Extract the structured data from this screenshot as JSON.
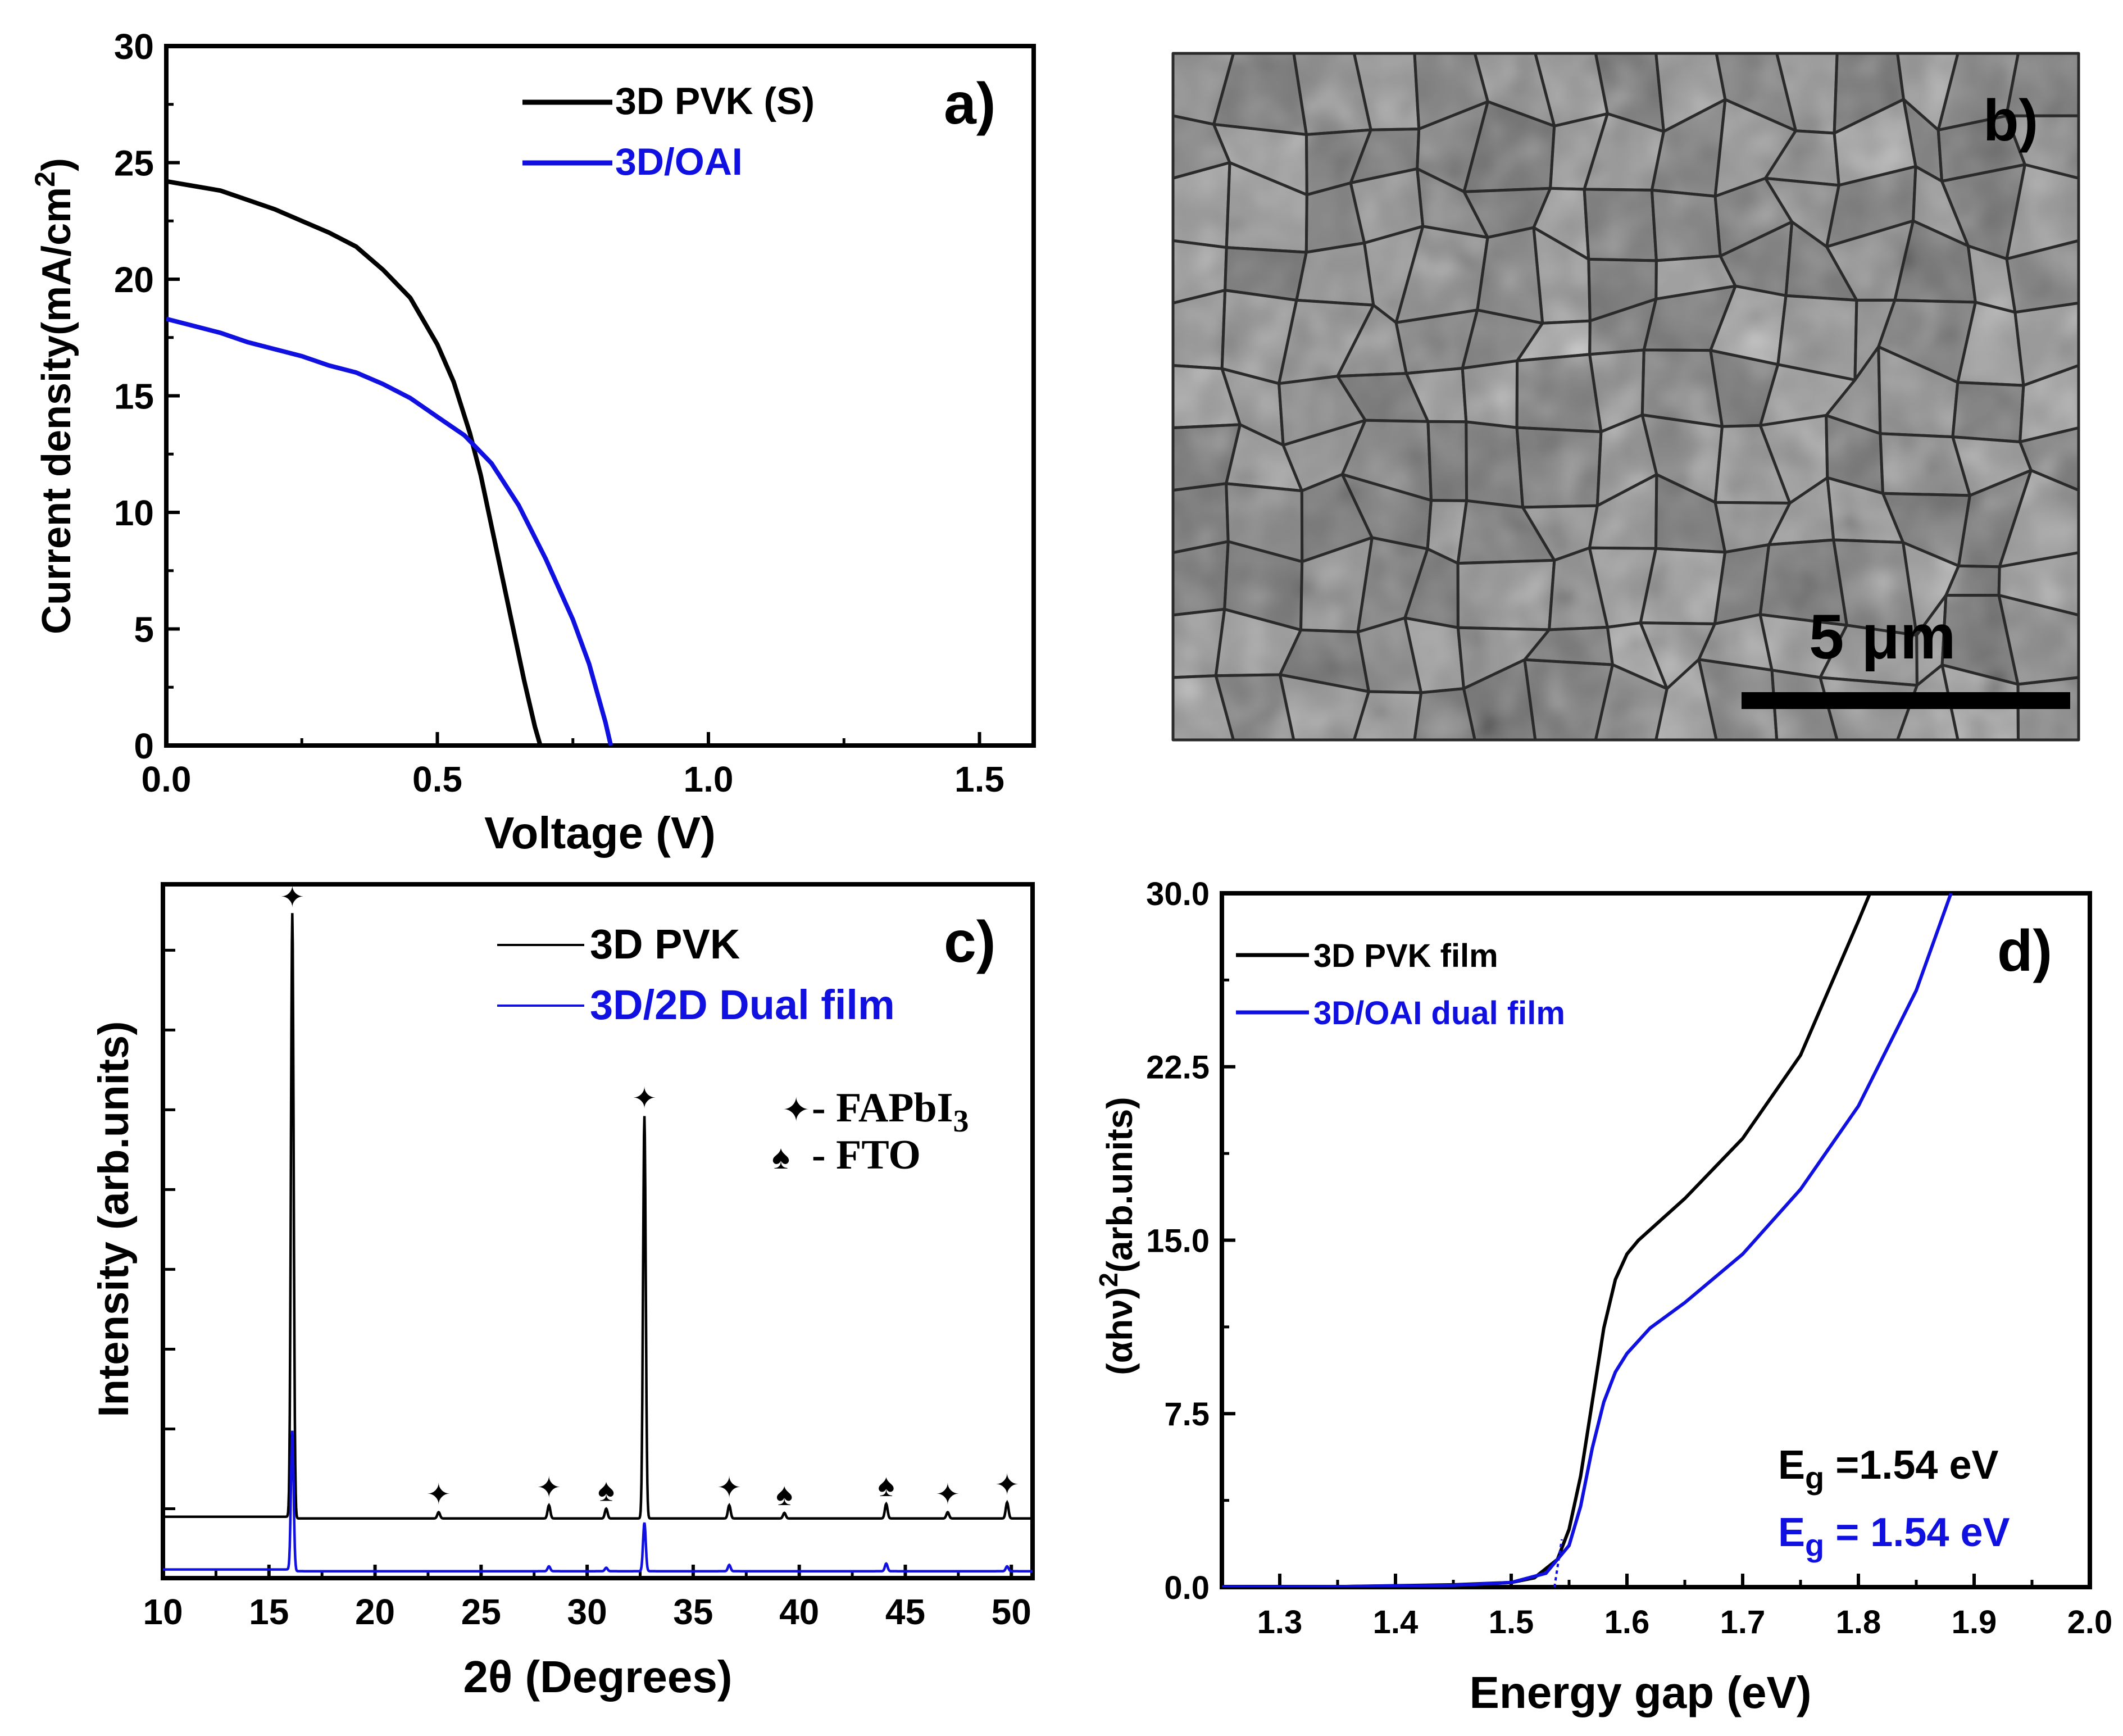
{
  "figure": {
    "panel_a": {
      "panel_label": "a)",
      "chart_data": {
        "type": "line",
        "xlabel": "Voltage (V)",
        "ylabel": "Current density(mA/cm",
        "ylabel_sup": "2",
        "ylabel_end": ")",
        "xlim": [
          0,
          1.6
        ],
        "ylim": [
          0,
          30
        ],
        "xticks": [
          0.0,
          0.5,
          1.0,
          1.5
        ],
        "xtick_labels": [
          "0.0",
          "0.5",
          "1.0",
          "1.5"
        ],
        "yticks": [
          0,
          5,
          10,
          15,
          20,
          25,
          30
        ],
        "ytick_labels": [
          "0",
          "5",
          "10",
          "15",
          "20",
          "25",
          "30"
        ],
        "series": [
          {
            "name": "3D PVK (S)",
            "color": "#000000",
            "x": [
              0,
              0.05,
              0.1,
              0.15,
              0.2,
              0.25,
              0.3,
              0.35,
              0.4,
              0.45,
              0.5,
              0.53,
              0.56,
              0.58,
              0.6,
              0.62,
              0.64,
              0.66,
              0.68,
              0.69
            ],
            "y": [
              24.2,
              24.0,
              23.8,
              23.4,
              23.0,
              22.5,
              22.0,
              21.4,
              20.4,
              19.2,
              17.2,
              15.6,
              13.4,
              11.6,
              9.4,
              7.2,
              5.0,
              2.8,
              0.8,
              0
            ]
          },
          {
            "name": "3D/OAI",
            "color": "#1010e0",
            "x": [
              0,
              0.05,
              0.1,
              0.15,
              0.2,
              0.25,
              0.3,
              0.35,
              0.4,
              0.45,
              0.5,
              0.55,
              0.6,
              0.65,
              0.7,
              0.75,
              0.78,
              0.81,
              0.82
            ],
            "y": [
              18.3,
              18.0,
              17.7,
              17.3,
              17.0,
              16.7,
              16.3,
              16.0,
              15.5,
              14.9,
              14.1,
              13.3,
              12.1,
              10.3,
              8.0,
              5.4,
              3.5,
              1.0,
              0
            ]
          }
        ]
      }
    },
    "panel_b": {
      "panel_label": "b)",
      "scale_bar_label": "5 μm"
    },
    "panel_c": {
      "panel_label": "c)",
      "chart_data": {
        "type": "line",
        "xlabel": "2θ (Degrees)",
        "ylabel": "Intensity (arb.units)",
        "xlim": [
          10,
          51
        ],
        "ylim": [
          0,
          100
        ],
        "xticks": [
          10,
          15,
          20,
          25,
          30,
          35,
          40,
          45,
          50
        ],
        "xtick_labels": [
          "10",
          "15",
          "20",
          "25",
          "30",
          "35",
          "40",
          "45",
          "50"
        ],
        "series": [
          {
            "name": "3D PVK",
            "color": "#000000",
            "baseline": 8.6,
            "peaks": [
              {
                "x": 16.1,
                "height": 87
              },
              {
                "x": 23.0,
                "height": 0.9
              },
              {
                "x": 28.2,
                "height": 1.9
              },
              {
                "x": 30.9,
                "height": 1.4
              },
              {
                "x": 32.7,
                "height": 58
              },
              {
                "x": 36.7,
                "height": 1.9
              },
              {
                "x": 39.3,
                "height": 0.8
              },
              {
                "x": 44.1,
                "height": 2.1
              },
              {
                "x": 47.0,
                "height": 0.9
              },
              {
                "x": 49.8,
                "height": 2.3
              }
            ]
          },
          {
            "name": "3D/2D Dual film",
            "color": "#1010e0",
            "baseline": 1.0,
            "peaks": [
              {
                "x": 16.1,
                "height": 20
              },
              {
                "x": 28.2,
                "height": 0.7
              },
              {
                "x": 30.9,
                "height": 0.5
              },
              {
                "x": 32.7,
                "height": 7
              },
              {
                "x": 36.7,
                "height": 0.9
              },
              {
                "x": 44.1,
                "height": 1.1
              },
              {
                "x": 49.8,
                "height": 0.7
              }
            ]
          }
        ],
        "markers": [
          {
            "symbol": "✦",
            "label": "FAPbI3",
            "x": [
              16.1,
              23.0,
              28.2,
              32.7,
              36.7,
              47.0,
              49.8
            ]
          },
          {
            "symbol": "♠",
            "label": "FTO",
            "x": [
              30.9,
              39.3,
              44.1
            ]
          }
        ],
        "annotations": {
          "fapbi3_prefix": "- FAPbI",
          "fapbi3_sub": "3",
          "fto": "- FTO"
        }
      }
    },
    "panel_d": {
      "panel_label": "d)",
      "chart_data": {
        "type": "line",
        "xlabel": "Energy gap (eV)",
        "ylabel": "(αhν)",
        "ylabel_sup": "2",
        "ylabel_end": "(arb.units)",
        "xlim": [
          1.25,
          2.0
        ],
        "ylim": [
          0,
          30
        ],
        "xticks": [
          1.3,
          1.4,
          1.5,
          1.6,
          1.7,
          1.8,
          1.9,
          2.0
        ],
        "xtick_labels": [
          "1.3",
          "1.4",
          "1.5",
          "1.6",
          "1.7",
          "1.8",
          "1.9",
          "2.0"
        ],
        "yticks": [
          0.0,
          7.5,
          15.0,
          22.5,
          30.0
        ],
        "ytick_labels": [
          "0.0",
          "7.5",
          "15.0",
          "22.5",
          "30.0"
        ],
        "series": [
          {
            "name": "3D PVK film",
            "color": "#000000",
            "x": [
              1.25,
              1.35,
              1.45,
              1.5,
              1.52,
              1.54,
              1.55,
              1.56,
              1.57,
              1.58,
              1.59,
              1.6,
              1.61,
              1.63,
              1.65,
              1.7,
              1.75,
              1.8,
              1.81
            ],
            "y": [
              0,
              0.02,
              0.1,
              0.2,
              0.4,
              1.2,
              2.5,
              4.8,
              8.0,
              11.2,
              13.3,
              14.4,
              15.0,
              15.9,
              16.8,
              19.4,
              23.0,
              28.8,
              30.0
            ]
          },
          {
            "name": "3D/OAI dual film",
            "color": "#1010e0",
            "x": [
              1.25,
              1.35,
              1.45,
              1.5,
              1.53,
              1.55,
              1.56,
              1.57,
              1.58,
              1.59,
              1.6,
              1.62,
              1.65,
              1.7,
              1.75,
              1.8,
              1.85,
              1.88
            ],
            "y": [
              0,
              0.02,
              0.08,
              0.2,
              0.6,
              1.8,
              3.5,
              6.0,
              8.0,
              9.3,
              10.1,
              11.2,
              12.3,
              14.4,
              17.2,
              20.8,
              25.8,
              30.0
            ]
          }
        ],
        "eg_black": {
          "prefix": "E",
          "sub": "g",
          "text": " =1.54 eV",
          "color": "#000000"
        },
        "eg_blue": {
          "prefix": "E",
          "sub": "g",
          "text": " = 1.54 eV",
          "color": "#1010e0"
        }
      }
    }
  }
}
